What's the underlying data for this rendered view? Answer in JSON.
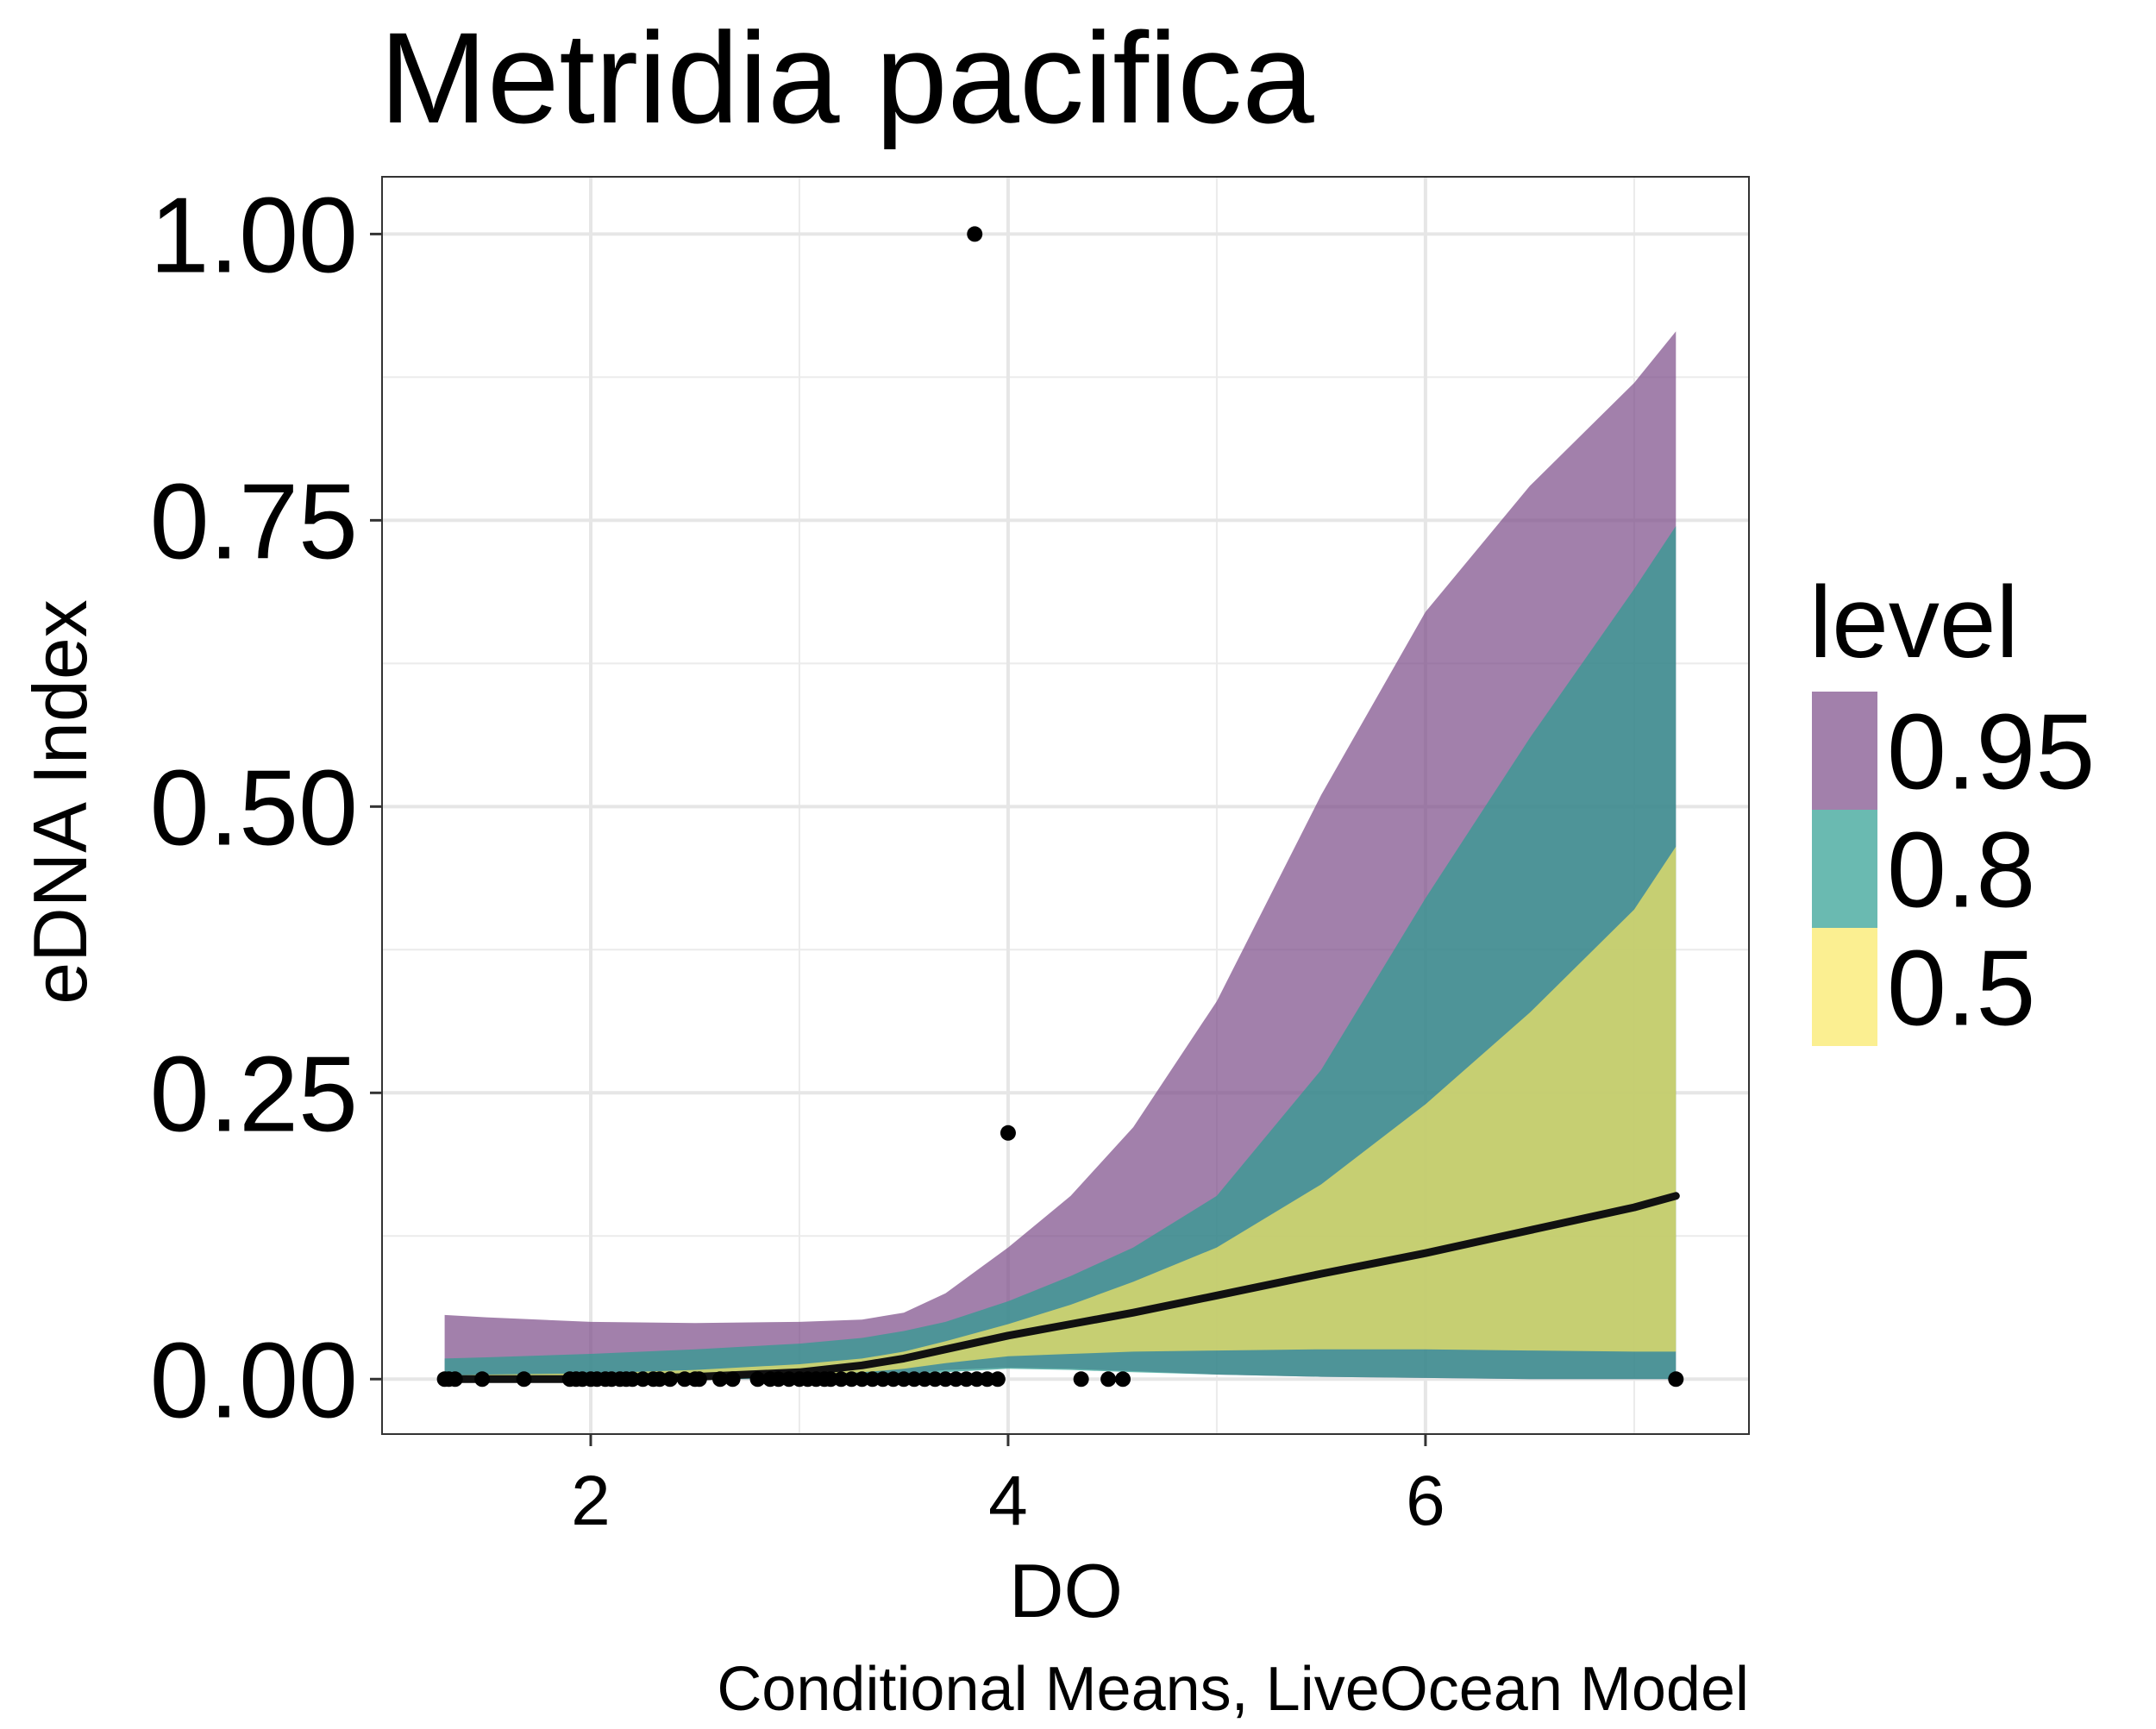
{
  "chart_data": {
    "type": "line",
    "title": "Metridia pacifica",
    "xlabel": "DO",
    "ylabel": "eDNA Index",
    "caption": "Conditional Means, LiveOcean Model",
    "xlim": [
      1.0,
      7.55
    ],
    "ylim": [
      -0.048,
      1.05
    ],
    "x_ticks": [
      2,
      4,
      6
    ],
    "x_tick_labels": [
      "2",
      "4",
      "6"
    ],
    "x_minor_ticks": [
      3,
      5,
      7
    ],
    "y_ticks": [
      0,
      0.25,
      0.5,
      0.75,
      1.0
    ],
    "y_tick_labels": [
      "0.00",
      "0.25",
      "0.50",
      "0.75",
      "1.00"
    ],
    "y_minor_ticks": [
      0.125,
      0.375,
      0.625,
      0.875
    ],
    "grid": true,
    "legend": {
      "title": "level",
      "position": "right",
      "entries": [
        {
          "label": "0.95",
          "color": "#7b4a87"
        },
        {
          "label": "0.8",
          "color": "#2b9c90"
        },
        {
          "label": "0.5",
          "color": "#fae862"
        }
      ]
    },
    "band_colors": {
      "0.95": "#7b4a87",
      "0.8": "#2b9c90",
      "0.5": "#fae862"
    },
    "band_opacity": 0.7,
    "x": [
      1.3,
      1.5,
      2.0,
      2.5,
      3.0,
      3.3,
      3.5,
      3.7,
      4.0,
      4.3,
      4.6,
      5.0,
      5.5,
      6.0,
      6.5,
      7.0,
      7.2
    ],
    "mean": [
      0.0,
      0.0,
      0.0,
      0.002,
      0.006,
      0.012,
      0.018,
      0.026,
      0.038,
      0.048,
      0.058,
      0.073,
      0.092,
      0.11,
      0.13,
      0.15,
      0.16
    ],
    "bands": {
      "0.95": {
        "lower": [
          0.0,
          0.0,
          0.0,
          0.0,
          0.0,
          0.001,
          0.004,
          0.008,
          0.01,
          0.009,
          0.007,
          0.004,
          0.002,
          0.001,
          0.0,
          0.0,
          0.0
        ],
        "upper": [
          0.056,
          0.054,
          0.05,
          0.049,
          0.05,
          0.052,
          0.058,
          0.075,
          0.115,
          0.16,
          0.22,
          0.33,
          0.51,
          0.67,
          0.78,
          0.87,
          0.915
        ]
      },
      "0.8": {
        "lower": [
          0.0,
          0.0,
          0.0,
          0.0,
          0.0,
          0.001,
          0.003,
          0.006,
          0.009,
          0.008,
          0.006,
          0.004,
          0.002,
          0.001,
          0.0,
          0.0,
          0.0
        ],
        "upper": [
          0.018,
          0.019,
          0.022,
          0.026,
          0.031,
          0.036,
          0.042,
          0.05,
          0.068,
          0.09,
          0.115,
          0.16,
          0.27,
          0.42,
          0.56,
          0.69,
          0.745
        ]
      },
      "0.5": {
        "lower": [
          0.0,
          0.0,
          0.0,
          0.001,
          0.003,
          0.006,
          0.009,
          0.014,
          0.02,
          0.022,
          0.024,
          0.025,
          0.026,
          0.026,
          0.025,
          0.024,
          0.024
        ],
        "upper": [
          0.003,
          0.004,
          0.005,
          0.008,
          0.013,
          0.018,
          0.024,
          0.033,
          0.048,
          0.065,
          0.085,
          0.115,
          0.17,
          0.24,
          0.32,
          0.41,
          0.465
        ]
      }
    },
    "points": [
      {
        "x": 1.3,
        "y": 0
      },
      {
        "x": 1.32,
        "y": 0
      },
      {
        "x": 1.35,
        "y": 0
      },
      {
        "x": 1.48,
        "y": 0
      },
      {
        "x": 1.68,
        "y": 0
      },
      {
        "x": 1.9,
        "y": 0
      },
      {
        "x": 1.93,
        "y": 0
      },
      {
        "x": 1.96,
        "y": 0
      },
      {
        "x": 2.0,
        "y": 0
      },
      {
        "x": 2.03,
        "y": 0
      },
      {
        "x": 2.07,
        "y": 0
      },
      {
        "x": 2.1,
        "y": 0
      },
      {
        "x": 2.14,
        "y": 0
      },
      {
        "x": 2.17,
        "y": 0
      },
      {
        "x": 2.2,
        "y": 0
      },
      {
        "x": 2.25,
        "y": 0
      },
      {
        "x": 2.3,
        "y": 0
      },
      {
        "x": 2.33,
        "y": 0
      },
      {
        "x": 2.38,
        "y": 0
      },
      {
        "x": 2.45,
        "y": 0
      },
      {
        "x": 2.5,
        "y": 0
      },
      {
        "x": 2.52,
        "y": 0
      },
      {
        "x": 2.62,
        "y": 0
      },
      {
        "x": 2.68,
        "y": 0
      },
      {
        "x": 2.8,
        "y": 0
      },
      {
        "x": 2.86,
        "y": 0
      },
      {
        "x": 2.9,
        "y": 0
      },
      {
        "x": 2.95,
        "y": 0
      },
      {
        "x": 3.0,
        "y": 0
      },
      {
        "x": 3.04,
        "y": 0
      },
      {
        "x": 3.08,
        "y": 0
      },
      {
        "x": 3.12,
        "y": 0
      },
      {
        "x": 3.15,
        "y": 0
      },
      {
        "x": 3.2,
        "y": 0
      },
      {
        "x": 3.25,
        "y": 0
      },
      {
        "x": 3.3,
        "y": 0
      },
      {
        "x": 3.35,
        "y": 0
      },
      {
        "x": 3.4,
        "y": 0
      },
      {
        "x": 3.45,
        "y": 0
      },
      {
        "x": 3.5,
        "y": 0
      },
      {
        "x": 3.55,
        "y": 0
      },
      {
        "x": 3.6,
        "y": 0
      },
      {
        "x": 3.65,
        "y": 0
      },
      {
        "x": 3.7,
        "y": 0
      },
      {
        "x": 3.75,
        "y": 0
      },
      {
        "x": 3.8,
        "y": 0
      },
      {
        "x": 3.85,
        "y": 0
      },
      {
        "x": 3.9,
        "y": 0
      },
      {
        "x": 3.95,
        "y": 0
      },
      {
        "x": 4.35,
        "y": 0
      },
      {
        "x": 4.48,
        "y": 0
      },
      {
        "x": 4.55,
        "y": 0
      },
      {
        "x": 7.2,
        "y": 0
      },
      {
        "x": 3.84,
        "y": 1.0
      },
      {
        "x": 4.0,
        "y": 0.215
      }
    ]
  }
}
